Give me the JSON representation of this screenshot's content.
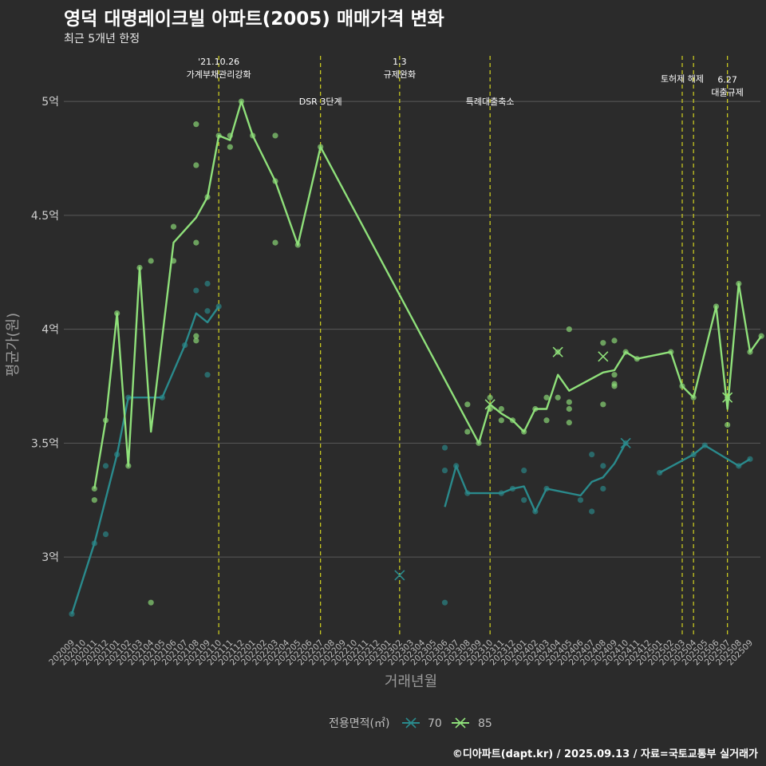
{
  "title": "영덕 대명레이크빌 아파트(2005) 매매가격 변화",
  "subtitle": "최근 5개년 한정",
  "credit": "©디아파트(dapt.kr) / 2025.09.13 / 자료=국토교통부 실거래가",
  "colors": {
    "background": "#2b2b2b",
    "grid": "#5a5a5a",
    "event_line": "#d4d420",
    "series_70": "#2a8a8c",
    "series_85": "#8fe07a"
  },
  "chart_data": {
    "type": "line",
    "xlabel": "거래년월",
    "ylabel": "평균가(원)",
    "ylim": [
      2.65,
      5.2
    ],
    "yticks": [
      {
        "value": 3.0,
        "label": "3억"
      },
      {
        "value": 3.5,
        "label": "3.5억"
      },
      {
        "value": 4.0,
        "label": "4억"
      },
      {
        "value": 4.5,
        "label": "4.5억"
      },
      {
        "value": 5.0,
        "label": "5억"
      }
    ],
    "categories": [
      "202009",
      "202010",
      "202011",
      "202012",
      "202101",
      "202102",
      "202103",
      "202104",
      "202105",
      "202106",
      "202107",
      "202108",
      "202109",
      "202110",
      "202111",
      "202112",
      "202201",
      "202202",
      "202203",
      "202204",
      "202205",
      "202206",
      "202207",
      "202208",
      "202209",
      "202210",
      "202211",
      "202212",
      "202301",
      "202302",
      "202303",
      "202304",
      "202305",
      "202306",
      "202307",
      "202308",
      "202309",
      "202310",
      "202311",
      "202312",
      "202401",
      "202402",
      "202403",
      "202404",
      "202405",
      "202406",
      "202407",
      "202408",
      "202409",
      "202410",
      "202411",
      "202412",
      "202501",
      "202502",
      "202503",
      "202504",
      "202505",
      "202506",
      "202507",
      "202508",
      "202509"
    ],
    "legend_title": "전용면적(㎡)",
    "series": [
      {
        "name": "70",
        "color": "#2a8a8c",
        "segments": [
          [
            [
              0,
              2.75
            ],
            [
              2,
              3.06
            ],
            [
              4,
              3.45
            ],
            [
              5,
              3.7
            ],
            [
              6,
              3.7
            ],
            [
              7,
              3.7
            ],
            [
              8,
              3.7
            ],
            [
              10,
              3.93
            ],
            [
              11,
              4.07
            ],
            [
              12,
              4.03
            ],
            [
              13,
              4.1
            ]
          ],
          [
            [
              33,
              3.22
            ],
            [
              34,
              3.4
            ],
            [
              35,
              3.28
            ],
            [
              36,
              3.28
            ],
            [
              37,
              3.28
            ],
            [
              38,
              3.28
            ],
            [
              39,
              3.3
            ],
            [
              40,
              3.31
            ],
            [
              41,
              3.2
            ],
            [
              42,
              3.3
            ],
            [
              45,
              3.27
            ],
            [
              46,
              3.33
            ],
            [
              47,
              3.35
            ],
            [
              48,
              3.41
            ],
            [
              49,
              3.5
            ]
          ],
          [
            [
              52,
              3.37
            ],
            [
              55,
              3.45
            ],
            [
              56,
              3.49
            ],
            [
              59,
              3.4
            ],
            [
              60,
              3.43
            ]
          ]
        ],
        "scatter": [
          [
            0,
            2.75
          ],
          [
            2,
            3.06
          ],
          [
            3,
            3.1
          ],
          [
            3,
            3.4
          ],
          [
            4,
            3.45
          ],
          [
            5,
            3.7
          ],
          [
            8,
            3.7
          ],
          [
            10,
            3.93
          ],
          [
            11,
            4.17
          ],
          [
            12,
            4.2
          ],
          [
            12,
            4.08
          ],
          [
            12,
            3.8
          ],
          [
            13,
            4.1
          ],
          [
            33,
            3.48
          ],
          [
            33,
            3.38
          ],
          [
            33,
            2.8
          ],
          [
            34,
            3.4
          ],
          [
            35,
            3.28
          ],
          [
            38,
            3.28
          ],
          [
            39,
            3.3
          ],
          [
            40,
            3.38
          ],
          [
            40,
            3.25
          ],
          [
            41,
            3.2
          ],
          [
            42,
            3.3
          ],
          [
            45,
            3.25
          ],
          [
            46,
            3.45
          ],
          [
            46,
            3.2
          ],
          [
            47,
            3.4
          ],
          [
            47,
            3.3
          ],
          [
            49,
            3.5
          ],
          [
            52,
            3.37
          ],
          [
            55,
            3.45
          ],
          [
            56,
            3.49
          ],
          [
            59,
            3.4
          ],
          [
            60,
            3.43
          ]
        ],
        "crosses": [
          [
            29,
            2.92
          ],
          [
            49,
            3.5
          ]
        ]
      },
      {
        "name": "85",
        "color": "#8fe07a",
        "segments": [
          [
            [
              2,
              3.3
            ],
            [
              3,
              3.6
            ],
            [
              4,
              4.07
            ],
            [
              5,
              3.4
            ],
            [
              6,
              4.27
            ],
            [
              7,
              3.55
            ],
            [
              9,
              4.38
            ],
            [
              11,
              4.49
            ],
            [
              12,
              4.58
            ],
            [
              13,
              4.85
            ],
            [
              14,
              4.83
            ],
            [
              15,
              5.0
            ],
            [
              16,
              4.85
            ],
            [
              18,
              4.65
            ],
            [
              20,
              4.37
            ],
            [
              22,
              4.8
            ],
            [
              36,
              3.5
            ],
            [
              37,
              3.67
            ],
            [
              38,
              3.63
            ],
            [
              39,
              3.6
            ],
            [
              40,
              3.55
            ],
            [
              41,
              3.65
            ],
            [
              42,
              3.65
            ],
            [
              43,
              3.8
            ],
            [
              44,
              3.73
            ],
            [
              47,
              3.81
            ],
            [
              48,
              3.82
            ],
            [
              49,
              3.9
            ],
            [
              50,
              3.87
            ],
            [
              53,
              3.9
            ],
            [
              54,
              3.75
            ],
            [
              55,
              3.7
            ],
            [
              57,
              4.1
            ],
            [
              58,
              3.65
            ],
            [
              59,
              4.2
            ],
            [
              60,
              3.9
            ],
            [
              61,
              3.97
            ]
          ]
        ],
        "scatter": [
          [
            2,
            3.3
          ],
          [
            2,
            3.25
          ],
          [
            3,
            3.6
          ],
          [
            4,
            4.07
          ],
          [
            5,
            3.4
          ],
          [
            6,
            4.27
          ],
          [
            7,
            4.3
          ],
          [
            7,
            2.8
          ],
          [
            9,
            4.45
          ],
          [
            9,
            4.3
          ],
          [
            11,
            4.9
          ],
          [
            11,
            4.72
          ],
          [
            11,
            4.38
          ],
          [
            11,
            3.97
          ],
          [
            11,
            3.95
          ],
          [
            12,
            4.58
          ],
          [
            13,
            4.85
          ],
          [
            14,
            4.85
          ],
          [
            14,
            4.8
          ],
          [
            15,
            5.0
          ],
          [
            16,
            4.85
          ],
          [
            18,
            4.85
          ],
          [
            18,
            4.65
          ],
          [
            18,
            4.38
          ],
          [
            20,
            4.37
          ],
          [
            22,
            4.8
          ],
          [
            35,
            3.67
          ],
          [
            35,
            3.55
          ],
          [
            36,
            3.5
          ],
          [
            37,
            3.7
          ],
          [
            37,
            3.65
          ],
          [
            38,
            3.65
          ],
          [
            38,
            3.6
          ],
          [
            39,
            3.6
          ],
          [
            40,
            3.55
          ],
          [
            41,
            3.65
          ],
          [
            42,
            3.7
          ],
          [
            42,
            3.6
          ],
          [
            43,
            3.9
          ],
          [
            43,
            3.7
          ],
          [
            44,
            4.0
          ],
          [
            44,
            3.68
          ],
          [
            44,
            3.65
          ],
          [
            44,
            3.59
          ],
          [
            47,
            3.94
          ],
          [
            47,
            3.67
          ],
          [
            48,
            3.95
          ],
          [
            48,
            3.8
          ],
          [
            48,
            3.76
          ],
          [
            48,
            3.75
          ],
          [
            49,
            3.9
          ],
          [
            50,
            3.87
          ],
          [
            53,
            3.9
          ],
          [
            54,
            3.75
          ],
          [
            55,
            3.7
          ],
          [
            57,
            4.1
          ],
          [
            58,
            3.7
          ],
          [
            58,
            3.58
          ],
          [
            59,
            4.2
          ],
          [
            60,
            3.9
          ],
          [
            61,
            3.97
          ]
        ],
        "crosses": [
          [
            43,
            3.9
          ],
          [
            47,
            3.88
          ],
          [
            37,
            3.67
          ],
          [
            58,
            3.7
          ]
        ]
      }
    ],
    "events": [
      {
        "x": 13,
        "lines": [
          "'21.10.26",
          "가계부채관리강화"
        ],
        "y": 5.12
      },
      {
        "x": 22,
        "lines": [
          "DSR 3단계"
        ],
        "y": 5.0
      },
      {
        "x": 29,
        "lines": [
          "1.3",
          "규제완화"
        ],
        "y": 5.12
      },
      {
        "x": 37,
        "lines": [
          "특례대출축소"
        ],
        "y": 5.0
      },
      {
        "x": 54,
        "lines": [
          "토허제 해제"
        ],
        "y": 5.1
      },
      {
        "x": 55,
        "lines": [],
        "y": 5.1
      },
      {
        "x": 58,
        "lines": [
          "6.27",
          "대출규제"
        ],
        "y": 5.04
      }
    ]
  }
}
